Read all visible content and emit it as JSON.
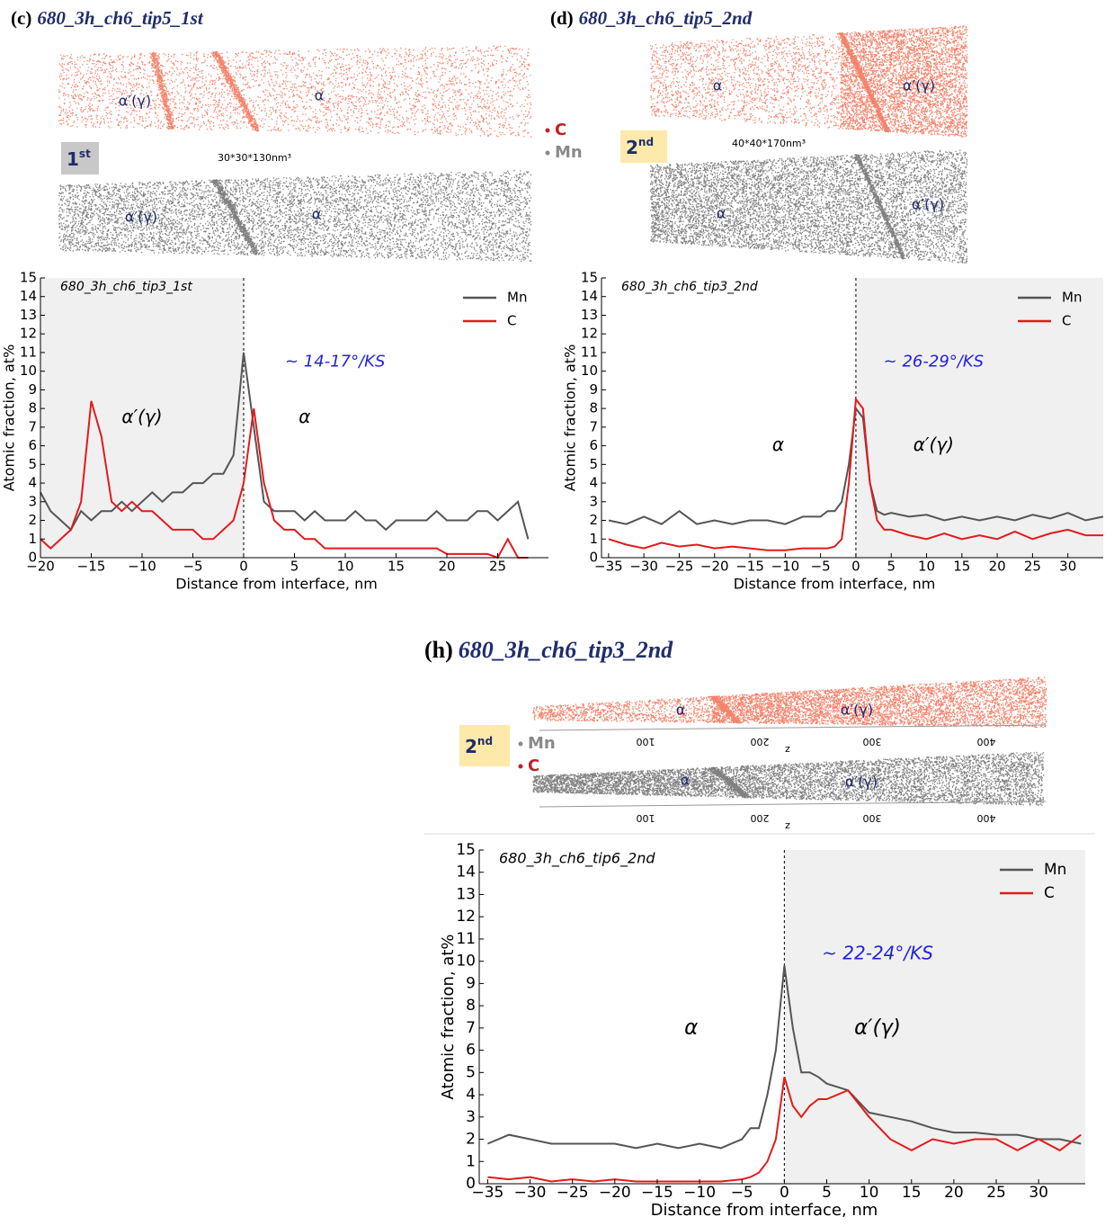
{
  "panels": [
    {
      "label": "(c)",
      "title": "680_3h_ch6_tip5_1st",
      "tip": "1",
      "tip_sup": "st",
      "size": "30*30*130nm³",
      "elements": [
        "C",
        "Mn"
      ],
      "c_labels": [
        "α′(γ)",
        "α"
      ],
      "mn_labels": [
        "α′(γ)",
        "α"
      ]
    },
    {
      "label": "(d)",
      "title": "680_3h_ch6_tip5_2nd",
      "tip": "2",
      "tip_sup": "nd",
      "size": "40*40*170nm³",
      "c_labels": [
        "α",
        "α′(γ)"
      ],
      "mn_labels": [
        "α",
        "α′(γ)"
      ]
    },
    {
      "label": "(h)",
      "title": "680_3h_ch6_tip3_2nd",
      "tip": "2",
      "tip_sup": "nd",
      "elements": [
        "Mn",
        "C"
      ],
      "c_labels": [
        "α",
        "α′(γ)"
      ],
      "mn_labels": [
        "α",
        "α′(γ)"
      ],
      "scale_labels": [
        "100",
        "200",
        "300",
        "400"
      ],
      "scale_axis": "z"
    }
  ],
  "chart_data": [
    {
      "type": "line",
      "inner_label": "680_3h_ch6_tip3_1st",
      "annotation": "~ 14-17°/KS",
      "region_labels": [
        "α′(γ)",
        "α"
      ],
      "xlabel": "Distance from interface, nm",
      "ylabel": "Atomic fraction, at%",
      "xlim": [
        -20,
        30
      ],
      "ylim": [
        0,
        15
      ],
      "xticks": [
        {
          "value": -20,
          "label": "−20"
        },
        {
          "value": -15,
          "label": "−15"
        },
        {
          "value": -10,
          "label": "−10"
        },
        {
          "value": -5,
          "label": "−5"
        },
        0,
        5,
        10,
        15,
        20,
        25
      ],
      "yticks": [
        0,
        1,
        2,
        3,
        4,
        5,
        6,
        7,
        8,
        9,
        10,
        11,
        12,
        13,
        14,
        15
      ],
      "shaded_side": "left",
      "interface": 0,
      "legend": "upper right",
      "x": [
        -20,
        -19,
        -18,
        -17,
        -16,
        -15,
        -14,
        -13,
        -12,
        -11,
        -10,
        -9,
        -8,
        -7,
        -6,
        -5,
        -4,
        -3,
        -2,
        -1,
        0,
        1,
        2,
        3,
        4,
        5,
        6,
        7,
        8,
        9,
        10,
        11,
        12,
        13,
        14,
        15,
        16,
        17,
        18,
        19,
        20,
        21,
        22,
        23,
        24,
        25,
        26,
        27,
        28
      ],
      "series": [
        {
          "name": "Mn",
          "color": "#555555",
          "values": [
            3.5,
            2.5,
            2,
            1.5,
            2.5,
            2,
            2.5,
            2.5,
            3,
            2.5,
            3,
            3.5,
            3,
            3.5,
            3.5,
            4,
            4,
            4.5,
            4.5,
            5.5,
            11,
            7,
            3,
            2.5,
            2.5,
            2.5,
            2,
            2.5,
            2,
            2,
            2,
            2.5,
            2,
            2,
            1.5,
            2,
            2,
            2,
            2,
            2.5,
            2,
            2,
            2,
            2.5,
            2.5,
            2,
            2.5,
            3,
            1
          ]
        },
        {
          "name": "C",
          "color": "#e31a1c",
          "values": [
            1,
            0.5,
            1,
            1.5,
            3,
            8.4,
            6.5,
            3,
            2.5,
            3,
            2.5,
            2.5,
            2,
            1.5,
            1.5,
            1.5,
            1,
            1,
            1.5,
            2,
            4,
            8,
            4,
            2,
            1.5,
            1.5,
            1,
            1,
            0.5,
            0.5,
            0.5,
            0.5,
            0.5,
            0.5,
            0.5,
            0.5,
            0.5,
            0.5,
            0.5,
            0.5,
            0.2,
            0.2,
            0.2,
            0.2,
            0.2,
            0,
            1,
            0,
            0
          ]
        }
      ]
    },
    {
      "type": "line",
      "inner_label": "680_3h_ch6_tip3_2nd",
      "annotation": "~ 26-29°/KS",
      "region_labels": [
        "α",
        "α′(γ)"
      ],
      "xlabel": "Distance from interface, nm",
      "ylabel": "Atomic fraction, at%",
      "xlim": [
        -36,
        35
      ],
      "ylim": [
        0,
        15
      ],
      "xticks": [
        {
          "value": -35,
          "label": "−35"
        },
        {
          "value": -30,
          "label": "−30"
        },
        {
          "value": -25,
          "label": "−25"
        },
        {
          "value": -20,
          "label": "−20"
        },
        {
          "value": -15,
          "label": "−15"
        },
        {
          "value": -10,
          "label": "−10"
        },
        {
          "value": -5,
          "label": "−5"
        },
        0,
        5,
        10,
        15,
        20,
        25,
        30
      ],
      "yticks": [
        0,
        1,
        2,
        3,
        4,
        5,
        6,
        7,
        8,
        9,
        10,
        11,
        12,
        13,
        14,
        15
      ],
      "shaded_side": "right",
      "interface": 0,
      "legend": "upper right",
      "x": [
        -35,
        -32.5,
        -30,
        -27.5,
        -25,
        -22.5,
        -20,
        -17.5,
        -15,
        -12.5,
        -10,
        -7.5,
        -5,
        -4,
        -3,
        -2,
        -1,
        0,
        1,
        2,
        3,
        4,
        5,
        7.5,
        10,
        12.5,
        15,
        17.5,
        20,
        22.5,
        25,
        27.5,
        30,
        32.5,
        35
      ],
      "series": [
        {
          "name": "Mn",
          "color": "#555555",
          "values": [
            2,
            1.8,
            2.2,
            1.8,
            2.5,
            1.8,
            2,
            1.8,
            2,
            2,
            1.8,
            2.2,
            2.2,
            2.5,
            2.5,
            3,
            5,
            8,
            7.5,
            4,
            2.5,
            2.3,
            2.4,
            2.2,
            2.3,
            2,
            2.2,
            2,
            2.2,
            2,
            2.3,
            2.1,
            2.4,
            2,
            2.2
          ]
        },
        {
          "name": "C",
          "color": "#e31a1c",
          "values": [
            1,
            0.7,
            0.5,
            0.8,
            0.6,
            0.7,
            0.5,
            0.6,
            0.5,
            0.4,
            0.4,
            0.5,
            0.5,
            0.5,
            0.6,
            1,
            4,
            8.5,
            8,
            4,
            2,
            1.5,
            1.5,
            1.2,
            1,
            1.3,
            1,
            1.2,
            1,
            1.4,
            1,
            1.3,
            1.5,
            1.2,
            1.2
          ]
        }
      ]
    },
    {
      "type": "line",
      "inner_label": "680_3h_ch6_tip6_2nd",
      "annotation": "~ 22-24°/KS",
      "region_labels": [
        "α",
        "α′(γ)"
      ],
      "xlabel": "Distance from interface, nm",
      "ylabel": "Atomic fraction, at%",
      "xlim": [
        -36,
        35.5
      ],
      "ylim": [
        0,
        15
      ],
      "xticks": [
        {
          "value": -35,
          "label": "−35"
        },
        {
          "value": -30,
          "label": "−30"
        },
        {
          "value": -25,
          "label": "−25"
        },
        {
          "value": -20,
          "label": "−20"
        },
        {
          "value": -15,
          "label": "−15"
        },
        {
          "value": -10,
          "label": "−10"
        },
        {
          "value": -5,
          "label": "−5"
        },
        0,
        5,
        10,
        15,
        20,
        25,
        30
      ],
      "yticks": [
        0,
        1,
        2,
        3,
        4,
        5,
        6,
        7,
        8,
        9,
        10,
        11,
        12,
        13,
        14,
        15
      ],
      "shaded_side": "right",
      "interface": 0,
      "legend": "upper right",
      "x": [
        -35,
        -32.5,
        -30,
        -27.5,
        -25,
        -22.5,
        -20,
        -17.5,
        -15,
        -12.5,
        -10,
        -7.5,
        -5,
        -4,
        -3,
        -2,
        -1,
        0,
        1,
        2,
        3,
        4,
        5,
        7.5,
        10,
        12.5,
        15,
        17.5,
        20,
        22.5,
        25,
        27.5,
        30,
        32.5,
        35
      ],
      "series": [
        {
          "name": "Mn",
          "color": "#555555",
          "values": [
            1.8,
            2.2,
            2,
            1.8,
            1.8,
            1.8,
            1.8,
            1.6,
            1.8,
            1.6,
            1.8,
            1.6,
            2,
            2.5,
            2.5,
            4,
            6,
            9.8,
            7,
            5,
            5,
            4.8,
            4.5,
            4.2,
            3.2,
            3,
            2.8,
            2.5,
            2.3,
            2.3,
            2.2,
            2.2,
            2,
            2,
            1.8
          ]
        },
        {
          "name": "C",
          "color": "#e31a1c",
          "values": [
            0.3,
            0.2,
            0.3,
            0.1,
            0.2,
            0.1,
            0.2,
            0.1,
            0.1,
            0.1,
            0.1,
            0.1,
            0.2,
            0.3,
            0.5,
            1,
            2,
            4.8,
            3.5,
            3,
            3.5,
            3.8,
            3.8,
            4.2,
            3,
            2,
            1.5,
            2,
            1.8,
            2,
            2,
            1.5,
            2,
            1.5,
            2.2
          ]
        }
      ]
    }
  ]
}
